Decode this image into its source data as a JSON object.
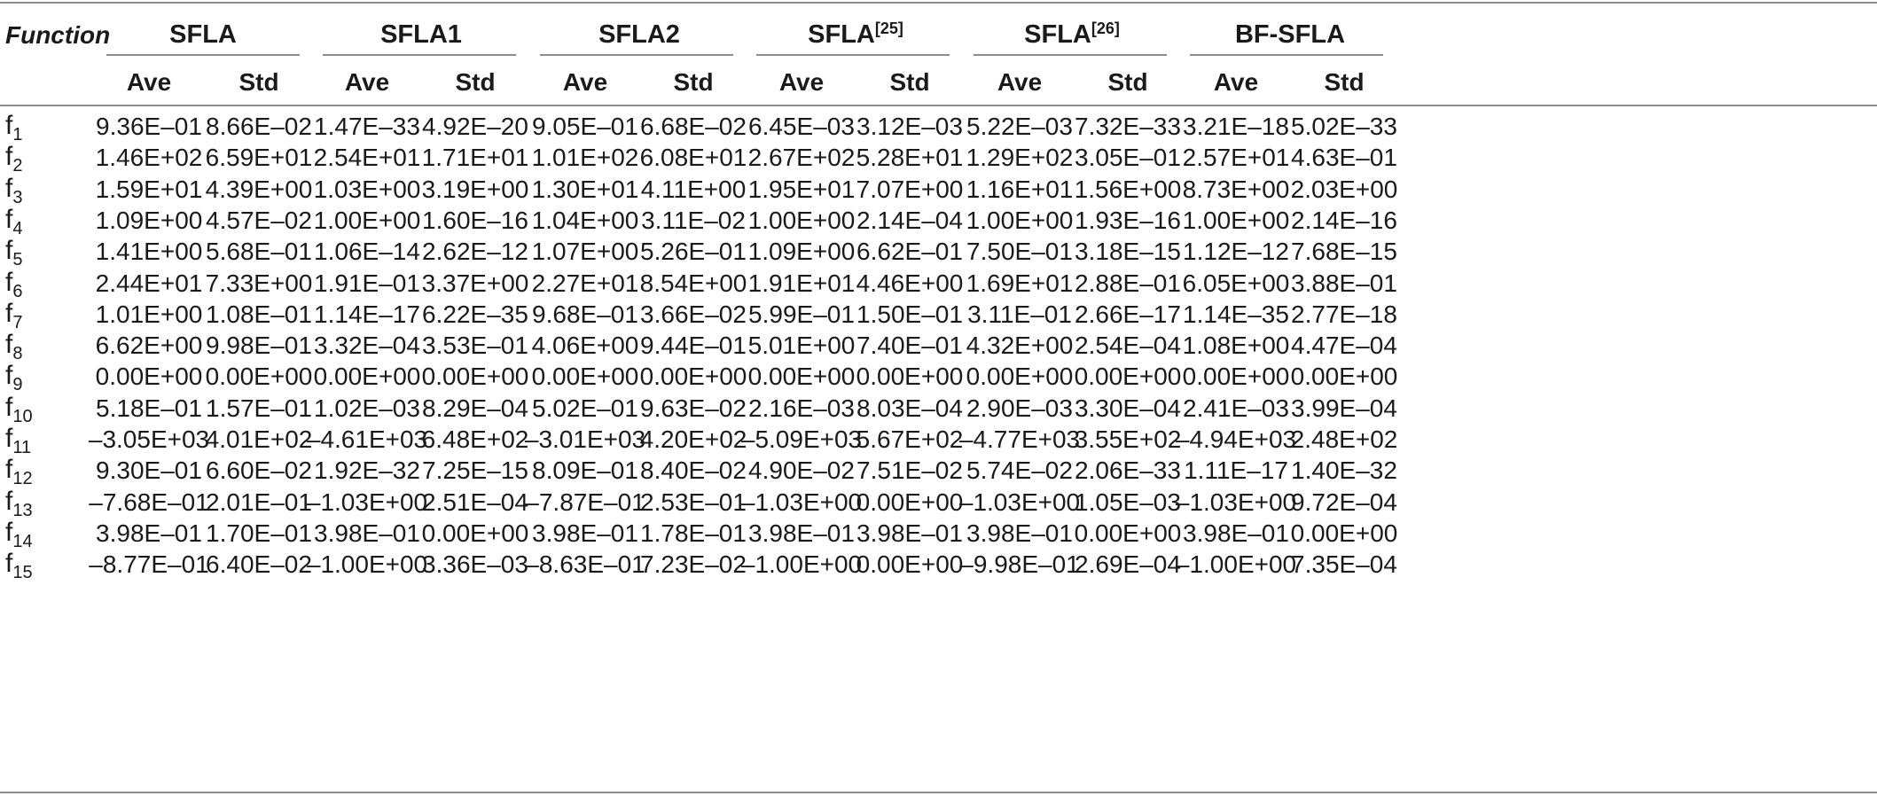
{
  "table": {
    "header_function": "Function",
    "groups": [
      {
        "label": "SFLA",
        "sup": ""
      },
      {
        "label": "SFLA1",
        "sup": ""
      },
      {
        "label": "SFLA2",
        "sup": ""
      },
      {
        "label": "SFLA",
        "sup": "[25]"
      },
      {
        "label": "SFLA",
        "sup": "[26]"
      },
      {
        "label": "BF-SFLA",
        "sup": ""
      }
    ],
    "subheaders": [
      "Ave",
      "Std"
    ],
    "rows": [
      {
        "fn": "f",
        "sub": "1",
        "values": [
          "9.36E–01",
          "8.66E–02",
          "1.47E–33",
          "4.92E–20",
          "9.05E–01",
          "6.68E–02",
          "6.45E–03",
          "3.12E–03",
          "5.22E–03",
          "7.32E–33",
          "3.21E–18",
          "5.02E–33"
        ]
      },
      {
        "fn": "f",
        "sub": "2",
        "values": [
          "1.46E+02",
          "6.59E+01",
          "2.54E+01",
          "1.71E+01",
          "1.01E+02",
          "6.08E+01",
          "2.67E+02",
          "5.28E+01",
          "1.29E+02",
          "3.05E–01",
          "2.57E+01",
          "4.63E–01"
        ]
      },
      {
        "fn": "f",
        "sub": "3",
        "values": [
          "1.59E+01",
          "4.39E+00",
          "1.03E+00",
          "3.19E+00",
          "1.30E+01",
          "4.11E+00",
          "1.95E+01",
          "7.07E+00",
          "1.16E+01",
          "1.56E+00",
          "8.73E+00",
          "2.03E+00"
        ]
      },
      {
        "fn": "f",
        "sub": "4",
        "values": [
          "1.09E+00",
          "4.57E–02",
          "1.00E+00",
          "1.60E–16",
          "1.04E+00",
          "3.11E–02",
          "1.00E+00",
          "2.14E–04",
          "1.00E+00",
          "1.93E–16",
          "1.00E+00",
          "2.14E–16"
        ]
      },
      {
        "fn": "f",
        "sub": "5",
        "values": [
          "1.41E+00",
          "5.68E–01",
          "1.06E–14",
          "2.62E–12",
          "1.07E+00",
          "5.26E–01",
          "1.09E+00",
          "6.62E–01",
          "7.50E–01",
          "3.18E–15",
          "1.12E–12",
          "7.68E–15"
        ]
      },
      {
        "fn": "f",
        "sub": "6",
        "values": [
          "2.44E+01",
          "7.33E+00",
          "1.91E–01",
          "3.37E+00",
          "2.27E+01",
          "8.54E+00",
          "1.91E+01",
          "4.46E+00",
          "1.69E+01",
          "2.88E–01",
          "6.05E+00",
          "3.88E–01"
        ]
      },
      {
        "fn": "f",
        "sub": "7",
        "values": [
          "1.01E+00",
          "1.08E–01",
          "1.14E–17",
          "6.22E–35",
          "9.68E–01",
          "3.66E–02",
          "5.99E–01",
          "1.50E–01",
          "3.11E–01",
          "2.66E–17",
          "1.14E–35",
          "2.77E–18"
        ]
      },
      {
        "fn": "f",
        "sub": "8",
        "values": [
          "6.62E+00",
          "9.98E–01",
          "3.32E–04",
          "3.53E–01",
          "4.06E+00",
          "9.44E–01",
          "5.01E+00",
          "7.40E–01",
          "4.32E+00",
          "2.54E–04",
          "1.08E+00",
          "4.47E–04"
        ]
      },
      {
        "fn": "f",
        "sub": "9",
        "values": [
          "0.00E+00",
          "0.00E+00",
          "0.00E+00",
          "0.00E+00",
          "0.00E+00",
          "0.00E+00",
          "0.00E+00",
          "0.00E+00",
          "0.00E+00",
          "0.00E+00",
          "0.00E+00",
          "0.00E+00"
        ]
      },
      {
        "fn": "f",
        "sub": "10",
        "values": [
          "5.18E–01",
          "1.57E–01",
          "1.02E–03",
          "8.29E–04",
          "5.02E–01",
          "9.63E–02",
          "2.16E–03",
          "8.03E–04",
          "2.90E–03",
          "3.30E–04",
          "2.41E–03",
          "3.99E–04"
        ]
      },
      {
        "fn": "f",
        "sub": "11",
        "values": [
          "–3.05E+03",
          "4.01E+02",
          "–4.61E+03",
          "6.48E+02",
          "–3.01E+03",
          "4.20E+02",
          "–5.09E+03",
          "5.67E+02",
          "–4.77E+03",
          "3.55E+02",
          "–4.94E+03",
          "2.48E+02"
        ]
      },
      {
        "fn": "f",
        "sub": "12",
        "values": [
          "9.30E–01",
          "6.60E–02",
          "1.92E–32",
          "7.25E–15",
          "8.09E–01",
          "8.40E–02",
          "4.90E–02",
          "7.51E–02",
          "5.74E–02",
          "2.06E–33",
          "1.11E–17",
          "1.40E–32"
        ]
      },
      {
        "fn": "f",
        "sub": "13",
        "values": [
          "–7.68E–01",
          "2.01E–01",
          "–1.03E+00",
          "2.51E–04",
          "–7.87E–01",
          "2.53E–01",
          "–1.03E+00",
          "0.00E+00",
          "–1.03E+00",
          "1.05E–03",
          "–1.03E+00",
          "9.72E–04"
        ]
      },
      {
        "fn": "f",
        "sub": "14",
        "values": [
          "3.98E–01",
          "1.70E–01",
          "3.98E–01",
          "0.00E+00",
          "3.98E–01",
          "1.78E–01",
          "3.98E–01",
          "3.98E–01",
          "3.98E–01",
          "0.00E+00",
          "3.98E–01",
          "0.00E+00"
        ]
      },
      {
        "fn": "f",
        "sub": "15",
        "values": [
          "–8.77E–01",
          "6.40E–02",
          "–1.00E+00",
          "3.36E–03",
          "–8.63E–01",
          "7.23E–02",
          "–1.00E+00",
          "0.00E+00",
          "–9.98E–01",
          "2.69E–04",
          "–1.00E+00",
          "7.35E–04"
        ]
      }
    ]
  }
}
